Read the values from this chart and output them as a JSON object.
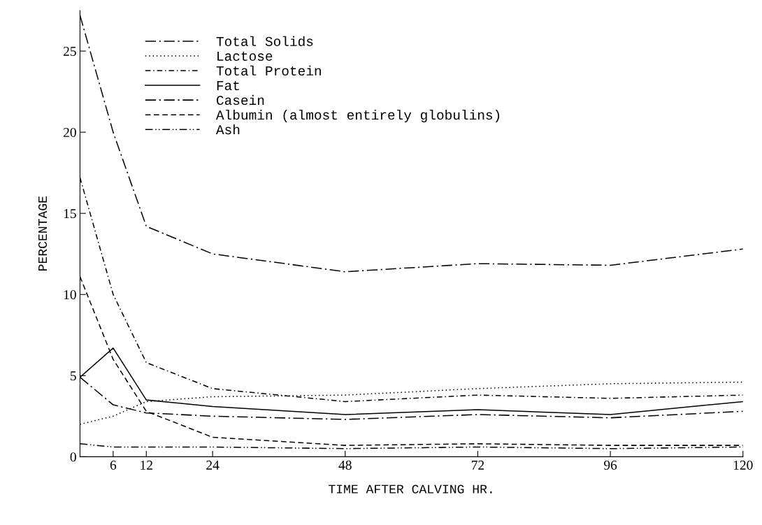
{
  "chart_data": {
    "type": "line",
    "xlabel": "TIME AFTER CALVING HR.",
    "ylabel": "PERCENTAGE",
    "x": [
      0,
      6,
      12,
      24,
      48,
      72,
      96,
      120
    ],
    "xlim": [
      0,
      120
    ],
    "xticks": [
      6,
      12,
      24,
      48,
      72,
      96,
      120
    ],
    "ylim": [
      0,
      27.5
    ],
    "yticks": [
      0,
      5,
      10,
      15,
      20,
      25
    ],
    "grid": false,
    "legend": "top left",
    "marker": "none",
    "series": [
      {
        "name": "Total Solids",
        "color": "#000000",
        "line_style": "longdashdot",
        "values": [
          27.2,
          20.0,
          14.2,
          12.5,
          11.4,
          11.9,
          11.8,
          12.8
        ]
      },
      {
        "name": "Lactose",
        "color": "#000000",
        "line_style": "dotted",
        "values": [
          2.0,
          2.5,
          3.4,
          3.7,
          3.8,
          4.2,
          4.5,
          4.6
        ]
      },
      {
        "name": "Total Protein",
        "color": "#000000",
        "line_style": "dashdot",
        "values": [
          17.2,
          10.0,
          5.8,
          4.2,
          3.4,
          3.8,
          3.6,
          3.8
        ]
      },
      {
        "name": "Fat",
        "color": "#000000",
        "line_style": "solid",
        "values": [
          4.9,
          6.7,
          3.5,
          3.1,
          2.6,
          2.9,
          2.6,
          3.4
        ]
      },
      {
        "name": "Casein",
        "color": "#000000",
        "line_style": "longdashdot",
        "values": [
          4.9,
          3.2,
          2.7,
          2.5,
          2.3,
          2.6,
          2.4,
          2.8
        ]
      },
      {
        "name": "Albumin (almost entirely globulins)",
        "color": "#000000",
        "line_style": "dashed",
        "values": [
          11.1,
          6.0,
          2.8,
          1.2,
          0.7,
          0.8,
          0.7,
          0.7
        ]
      },
      {
        "name": "Ash",
        "color": "#000000",
        "line_style": "dashdotdot",
        "values": [
          0.8,
          0.6,
          0.6,
          0.6,
          0.5,
          0.6,
          0.5,
          0.6
        ]
      }
    ]
  }
}
